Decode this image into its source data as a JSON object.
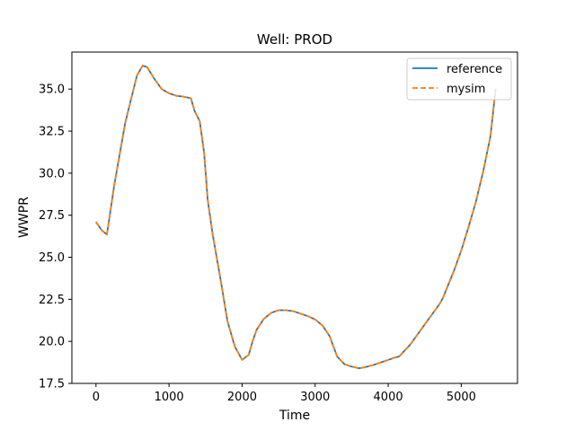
{
  "chart_data": {
    "type": "line",
    "title": "Well: PROD",
    "xlabel": "Time",
    "ylabel": "WWPR",
    "xlim": [
      -330,
      5770
    ],
    "ylim": [
      17.5,
      37.2
    ],
    "xticks": [
      0,
      1000,
      2000,
      3000,
      4000,
      5000
    ],
    "yticks": [
      17.5,
      20.0,
      22.5,
      25.0,
      27.5,
      30.0,
      32.5,
      35.0
    ],
    "xtick_labels": [
      "0",
      "1000",
      "2000",
      "3000",
      "4000",
      "5000"
    ],
    "ytick_labels": [
      "17.5",
      "20.0",
      "22.5",
      "25.0",
      "27.5",
      "30.0",
      "32.5",
      "35.0"
    ],
    "legend": {
      "position": "top-right",
      "entries": [
        "reference",
        "mysim"
      ]
    },
    "series": [
      {
        "name": "reference",
        "color": "#1f77b4",
        "style": "solid",
        "x": [
          0,
          80,
          150,
          250,
          400,
          560,
          640,
          700,
          800,
          900,
          1000,
          1100,
          1200,
          1300,
          1350,
          1420,
          1480,
          1530,
          1600,
          1700,
          1800,
          1900,
          2000,
          2090,
          2150,
          2200,
          2300,
          2400,
          2500,
          2600,
          2700,
          2800,
          2900,
          3000,
          3100,
          3200,
          3300,
          3400,
          3500,
          3600,
          3670,
          3800,
          3900,
          4000,
          4100,
          4150,
          4300,
          4500,
          4700,
          4750,
          4900,
          5000,
          5100,
          5200,
          5300,
          5400,
          5470
        ],
        "values": [
          27.1,
          26.6,
          26.35,
          29.3,
          33.0,
          35.8,
          36.4,
          36.3,
          35.6,
          35.0,
          34.75,
          34.6,
          34.55,
          34.45,
          33.7,
          33.1,
          31.2,
          28.4,
          26.3,
          23.8,
          21.2,
          19.7,
          18.9,
          19.2,
          20.1,
          20.7,
          21.35,
          21.7,
          21.85,
          21.85,
          21.8,
          21.65,
          21.5,
          21.3,
          20.95,
          20.3,
          19.1,
          18.65,
          18.5,
          18.4,
          18.45,
          18.6,
          18.75,
          18.9,
          19.05,
          19.1,
          19.8,
          21.0,
          22.2,
          22.6,
          24.2,
          25.4,
          26.8,
          28.3,
          30.1,
          32.2,
          35.0
        ]
      },
      {
        "name": "mysim",
        "color": "#ff7f0e",
        "style": "dashed",
        "x": [
          0,
          80,
          150,
          250,
          400,
          560,
          640,
          700,
          800,
          900,
          1000,
          1100,
          1200,
          1300,
          1350,
          1420,
          1480,
          1530,
          1600,
          1700,
          1800,
          1900,
          2000,
          2090,
          2150,
          2200,
          2300,
          2400,
          2500,
          2600,
          2700,
          2800,
          2900,
          3000,
          3100,
          3200,
          3300,
          3400,
          3500,
          3600,
          3670,
          3800,
          3900,
          4000,
          4100,
          4150,
          4300,
          4500,
          4700,
          4750,
          4900,
          5000,
          5100,
          5200,
          5300,
          5400,
          5470
        ],
        "values": [
          27.1,
          26.6,
          26.35,
          29.3,
          33.0,
          35.8,
          36.4,
          36.3,
          35.6,
          35.0,
          34.75,
          34.6,
          34.55,
          34.45,
          33.7,
          33.1,
          31.2,
          28.4,
          26.3,
          23.8,
          21.2,
          19.7,
          18.9,
          19.2,
          20.1,
          20.7,
          21.35,
          21.7,
          21.85,
          21.85,
          21.8,
          21.65,
          21.5,
          21.3,
          20.95,
          20.3,
          19.1,
          18.65,
          18.5,
          18.4,
          18.45,
          18.6,
          18.75,
          18.9,
          19.05,
          19.1,
          19.8,
          21.0,
          22.2,
          22.6,
          24.2,
          25.4,
          26.8,
          28.3,
          30.1,
          32.2,
          35.0
        ]
      }
    ]
  }
}
